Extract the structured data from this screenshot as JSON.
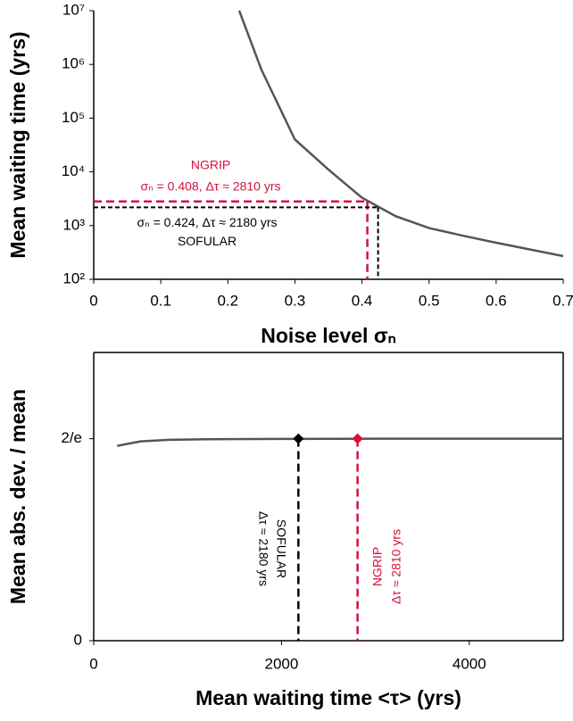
{
  "chart_data": [
    {
      "type": "line",
      "log_y": true,
      "ylabel": "Mean waiting time (yrs)",
      "xlabel": "Noise level σₙ",
      "x": [
        0.217,
        0.25,
        0.3,
        0.35,
        0.4,
        0.45,
        0.5,
        0.55,
        0.6,
        0.65,
        0.7
      ],
      "values": [
        10000000,
        800000,
        40000,
        11000,
        3300,
        1500,
        900,
        650,
        480,
        360,
        270
      ],
      "color": "#555555",
      "xlim": [
        0,
        0.7
      ],
      "xticks": [
        0,
        0.1,
        0.2,
        0.3,
        0.4,
        0.5,
        0.6,
        0.7
      ],
      "ylim": [
        100,
        10000000
      ],
      "yticks": [
        {
          "value": 100,
          "label": "10²"
        },
        {
          "value": 1000,
          "label": "10³"
        },
        {
          "value": 10000,
          "label": "10⁴"
        },
        {
          "value": 100000,
          "label": "10⁵"
        },
        {
          "value": 1000000,
          "label": "10⁶"
        },
        {
          "value": 10000000,
          "label": "10⁷"
        }
      ],
      "annotations": [
        {
          "label": "NGRIP",
          "text": "σₙ = 0.408, Δτ ≈ 2810 yrs",
          "x": 0.408,
          "y": 2810,
          "color": "#d6103c"
        },
        {
          "label": "SOFULAR",
          "text": "σₙ = 0.424, Δτ ≈ 2180 yrs",
          "x": 0.424,
          "y": 2180,
          "color": "#000000"
        }
      ]
    },
    {
      "type": "line",
      "log_y": false,
      "ylabel": "Mean abs. dev. / mean",
      "xlabel": "Mean waiting time <τ> (yrs)",
      "x": [
        250,
        500,
        800,
        1200,
        2000,
        3000,
        4000,
        5000
      ],
      "values": [
        0.71,
        0.726,
        0.732,
        0.734,
        0.735,
        0.736,
        0.736,
        0.736
      ],
      "color": "#555555",
      "xlim": [
        0,
        5000
      ],
      "xticks": [
        0,
        2000,
        4000
      ],
      "ylim": [
        0,
        1.05
      ],
      "yticks": [
        0,
        {
          "value": 0.7358,
          "label": "2/e"
        }
      ],
      "annotations": [
        {
          "label": "SOFULAR",
          "text": "Δτ ≈ 2180 yrs",
          "x": 2180,
          "y": 0.7358,
          "color": "#000000"
        },
        {
          "label": "NGRIP",
          "text": "Δτ ≈ 2810 yrs",
          "x": 2810,
          "y": 0.7358,
          "color": "#d6103c"
        }
      ]
    }
  ]
}
